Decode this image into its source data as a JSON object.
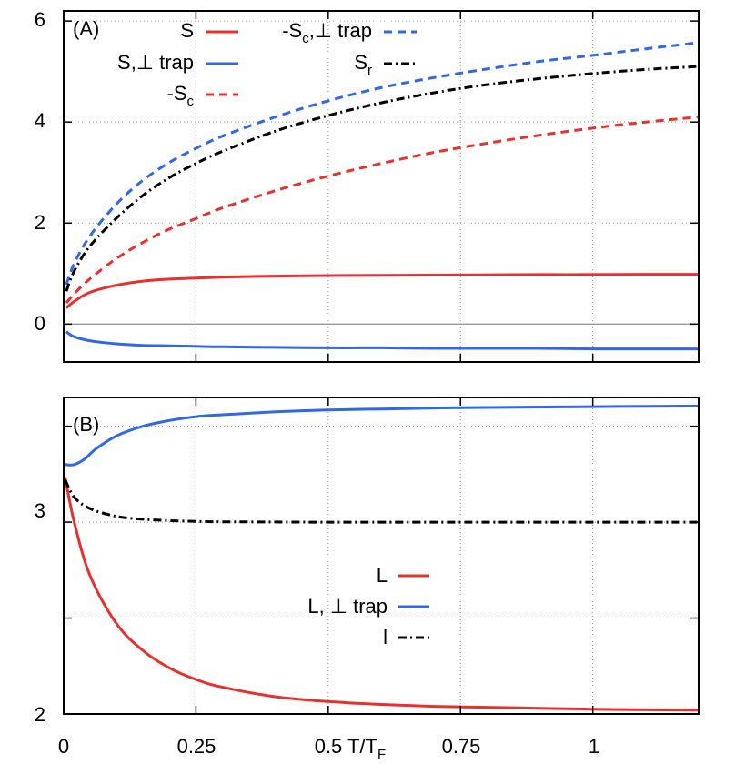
{
  "colors": {
    "red": "#e8302f",
    "blue": "#3168e6",
    "black": "#000000",
    "grid": "#999999",
    "zero": "#999999"
  },
  "shared_x_axis": {
    "label_prefix": "T/T",
    "label_subscript": "F"
  },
  "chart_data": [
    {
      "type": "line",
      "panel_label": "(A)",
      "xlim": [
        0,
        1.2
      ],
      "ylim": [
        -0.75,
        6.2
      ],
      "yticks": [
        0,
        2,
        4,
        6
      ],
      "ytick_labels": [
        "0",
        "2",
        "4",
        "6"
      ],
      "xticks": [
        0,
        0.25,
        0.5,
        0.75,
        1
      ],
      "grid": true,
      "zero_line": true,
      "series": [
        {
          "id": "S",
          "name": "S",
          "color": "#e8302f",
          "dash": "solid",
          "legend": {
            "text": "S",
            "sub": ""
          },
          "x": [
            0.005,
            0.02,
            0.05,
            0.1,
            0.15,
            0.2,
            0.25,
            0.3,
            0.4,
            0.5,
            0.6,
            0.7,
            0.8,
            0.9,
            1.0,
            1.1,
            1.2
          ],
          "y": [
            0.32,
            0.45,
            0.63,
            0.77,
            0.85,
            0.89,
            0.91,
            0.93,
            0.95,
            0.96,
            0.965,
            0.97,
            0.975,
            0.98,
            0.98,
            0.985,
            0.985
          ]
        },
        {
          "id": "S_perp",
          "name": "S,⊥ trap",
          "color": "#3168e6",
          "dash": "solid",
          "legend": {
            "text": "S,⊥ trap",
            "sub": ""
          },
          "x": [
            0.005,
            0.02,
            0.05,
            0.1,
            0.15,
            0.2,
            0.25,
            0.3,
            0.4,
            0.5,
            0.6,
            0.7,
            0.8,
            0.9,
            1.0,
            1.1,
            1.2
          ],
          "y": [
            -0.15,
            -0.25,
            -0.33,
            -0.39,
            -0.42,
            -0.43,
            -0.44,
            -0.45,
            -0.46,
            -0.47,
            -0.47,
            -0.48,
            -0.48,
            -0.48,
            -0.49,
            -0.49,
            -0.49
          ]
        },
        {
          "id": "mSc",
          "name": "-Sc",
          "color": "#e8302f",
          "dash": "dashed",
          "legend": {
            "text": "-S",
            "sub": "c"
          },
          "x": [
            0.005,
            0.02,
            0.05,
            0.1,
            0.15,
            0.2,
            0.25,
            0.3,
            0.4,
            0.5,
            0.6,
            0.7,
            0.8,
            0.9,
            1.0,
            1.1,
            1.2
          ],
          "y": [
            0.42,
            0.6,
            0.9,
            1.3,
            1.62,
            1.88,
            2.09,
            2.3,
            2.64,
            2.93,
            3.18,
            3.4,
            3.58,
            3.74,
            3.88,
            4.0,
            4.1
          ]
        },
        {
          "id": "mSc_perp",
          "name": "-Sc,⊥ trap",
          "color": "#3168e6",
          "dash": "dashed",
          "legend": {
            "text": "-S",
            "sub": "c",
            "suffix": ",⊥ trap"
          },
          "x": [
            0.005,
            0.02,
            0.05,
            0.1,
            0.15,
            0.2,
            0.25,
            0.3,
            0.4,
            0.5,
            0.6,
            0.7,
            0.8,
            0.9,
            1.0,
            1.1,
            1.2
          ],
          "y": [
            0.78,
            1.2,
            1.75,
            2.38,
            2.85,
            3.2,
            3.48,
            3.72,
            4.1,
            4.42,
            4.68,
            4.88,
            5.05,
            5.2,
            5.32,
            5.45,
            5.57
          ]
        },
        {
          "id": "Sr",
          "name": "Sr",
          "color": "#000000",
          "dash": "dashdot",
          "legend": {
            "text": "S",
            "sub": "r"
          },
          "x": [
            0.005,
            0.02,
            0.05,
            0.1,
            0.15,
            0.2,
            0.25,
            0.3,
            0.4,
            0.5,
            0.6,
            0.7,
            0.8,
            0.9,
            1.0,
            1.1,
            1.2
          ],
          "y": [
            0.65,
            1.05,
            1.55,
            2.1,
            2.55,
            2.9,
            3.18,
            3.42,
            3.82,
            4.13,
            4.38,
            4.58,
            4.74,
            4.86,
            4.96,
            5.04,
            5.1
          ]
        }
      ]
    },
    {
      "type": "line",
      "panel_label": "(B)",
      "xlim": [
        0,
        1.2
      ],
      "ylim": [
        2,
        3.65
      ],
      "yticks": [
        2,
        2.5,
        3,
        3.5
      ],
      "ytick_labels": [
        "2",
        "",
        "3",
        ""
      ],
      "xticks": [
        0,
        0.25,
        0.5,
        0.75,
        1
      ],
      "xtick_labels": [
        "0",
        "0.25",
        "0.5",
        "0.75",
        "1"
      ],
      "grid": true,
      "series": [
        {
          "id": "L",
          "name": "L",
          "color": "#e8302f",
          "dash": "solid",
          "legend": {
            "text": "L",
            "sub": ""
          },
          "x": [
            0.003,
            0.02,
            0.05,
            0.1,
            0.15,
            0.2,
            0.25,
            0.3,
            0.4,
            0.5,
            0.6,
            0.7,
            0.8,
            0.9,
            1.0,
            1.1,
            1.2
          ],
          "y": [
            3.23,
            3.0,
            2.72,
            2.47,
            2.33,
            2.24,
            2.18,
            2.14,
            2.09,
            2.065,
            2.05,
            2.04,
            2.035,
            2.03,
            2.025,
            2.022,
            2.02
          ]
        },
        {
          "id": "L_perp",
          "name": "L, ⊥ trap",
          "color": "#3168e6",
          "dash": "solid",
          "legend": {
            "text": "L, ⊥ trap",
            "sub": ""
          },
          "x": [
            0.003,
            0.02,
            0.04,
            0.06,
            0.1,
            0.15,
            0.2,
            0.25,
            0.3,
            0.4,
            0.5,
            0.6,
            0.7,
            0.8,
            0.9,
            1.0,
            1.1,
            1.2
          ],
          "y": [
            3.3,
            3.3,
            3.33,
            3.38,
            3.45,
            3.5,
            3.53,
            3.55,
            3.56,
            3.575,
            3.585,
            3.59,
            3.595,
            3.598,
            3.6,
            3.602,
            3.604,
            3.605
          ]
        },
        {
          "id": "l",
          "name": "l",
          "color": "#000000",
          "dash": "dashdot",
          "legend": {
            "text": "l",
            "sub": ""
          },
          "x": [
            0.003,
            0.02,
            0.05,
            0.1,
            0.15,
            0.2,
            0.25,
            0.3,
            0.4,
            0.5,
            0.6,
            0.8,
            1.0,
            1.2
          ],
          "y": [
            3.22,
            3.13,
            3.07,
            3.03,
            3.015,
            3.008,
            3.004,
            3.002,
            3.001,
            3.0,
            3.0,
            3.0,
            3.0,
            3.0
          ]
        }
      ]
    }
  ]
}
